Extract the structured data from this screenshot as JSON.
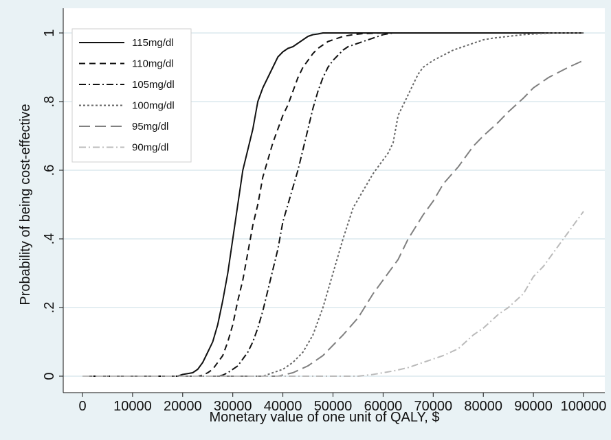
{
  "chart_data": {
    "type": "line",
    "title": "",
    "xlabel": "Monetary value of one unit of QALY, $",
    "ylabel": "Probability of being cost-effective",
    "xlim": [
      0,
      100000
    ],
    "ylim": [
      0,
      1
    ],
    "xticks": [
      0,
      10000,
      20000,
      30000,
      40000,
      50000,
      60000,
      70000,
      80000,
      90000,
      100000
    ],
    "xtick_labels": [
      "0",
      "10000",
      "20000",
      "30000",
      "40000",
      "50000",
      "60000",
      "70000",
      "80000",
      "90000",
      "100000"
    ],
    "yticks": [
      0,
      0.2,
      0.4,
      0.6,
      0.8,
      1
    ],
    "ytick_labels": [
      "0",
      ".2",
      ".4",
      ".6",
      ".8",
      "1"
    ],
    "grid": true,
    "legend_position": "top-left",
    "background_color": "#e9f2f5",
    "plot_background_color": "#ffffff",
    "grid_color": "#dce8ee",
    "series": [
      {
        "name": "115mg/dl",
        "color": "#111111",
        "dash": "solid",
        "x": [
          0,
          19000,
          20000,
          22000,
          23000,
          24000,
          25000,
          26000,
          27000,
          28000,
          29000,
          30000,
          31000,
          32000,
          33000,
          34000,
          35000,
          36000,
          37000,
          38000,
          39000,
          40000,
          41000,
          42000,
          43000,
          44000,
          45000,
          46000,
          47000,
          48000,
          50000,
          100000
        ],
        "y": [
          0,
          0,
          0.005,
          0.01,
          0.02,
          0.04,
          0.07,
          0.1,
          0.15,
          0.22,
          0.3,
          0.4,
          0.5,
          0.6,
          0.66,
          0.72,
          0.8,
          0.84,
          0.87,
          0.9,
          0.93,
          0.945,
          0.955,
          0.96,
          0.97,
          0.98,
          0.99,
          0.995,
          0.997,
          1.0,
          1.0,
          1.0
        ]
      },
      {
        "name": "110mg/dl",
        "color": "#111111",
        "dash": "dash",
        "x": [
          0,
          23000,
          24000,
          25000,
          26000,
          27000,
          28000,
          29000,
          30000,
          31000,
          32000,
          33000,
          34000,
          35000,
          36000,
          37000,
          38000,
          39000,
          40000,
          41000,
          42000,
          43000,
          44000,
          45000,
          46000,
          47000,
          48000,
          49000,
          50000,
          52000,
          54000,
          56000,
          60000,
          100000
        ],
        "y": [
          0,
          0,
          0.003,
          0.01,
          0.02,
          0.04,
          0.06,
          0.1,
          0.15,
          0.22,
          0.28,
          0.36,
          0.44,
          0.5,
          0.58,
          0.63,
          0.68,
          0.72,
          0.76,
          0.79,
          0.83,
          0.87,
          0.9,
          0.92,
          0.94,
          0.955,
          0.965,
          0.975,
          0.98,
          0.99,
          0.995,
          0.998,
          1.0,
          1.0
        ]
      },
      {
        "name": "105mg/dl",
        "color": "#111111",
        "dash": "dashdot",
        "x": [
          0,
          27000,
          28000,
          29000,
          30000,
          31000,
          32000,
          33000,
          34000,
          35000,
          36000,
          37000,
          38000,
          39000,
          40000,
          41000,
          42000,
          43000,
          44000,
          45000,
          46000,
          47000,
          48000,
          49000,
          50000,
          51000,
          52000,
          53000,
          54000,
          55000,
          56000,
          57000,
          58000,
          60000,
          62000,
          100000
        ],
        "y": [
          0,
          0,
          0.003,
          0.01,
          0.02,
          0.03,
          0.05,
          0.07,
          0.1,
          0.14,
          0.19,
          0.25,
          0.31,
          0.37,
          0.45,
          0.5,
          0.55,
          0.6,
          0.66,
          0.72,
          0.78,
          0.83,
          0.87,
          0.9,
          0.92,
          0.935,
          0.95,
          0.96,
          0.965,
          0.97,
          0.975,
          0.98,
          0.985,
          0.995,
          1.0,
          1.0
        ]
      },
      {
        "name": "100mg/dl",
        "color": "#666666",
        "dash": "dot",
        "x": [
          0,
          36000,
          38000,
          40000,
          42000,
          44000,
          46000,
          48000,
          50000,
          52000,
          54000,
          56000,
          58000,
          60000,
          61000,
          62000,
          63000,
          64000,
          65000,
          66000,
          67000,
          68000,
          70000,
          72000,
          74000,
          76000,
          78000,
          80000,
          82000,
          85000,
          88000,
          90000,
          94000,
          100000
        ],
        "y": [
          0,
          0,
          0.01,
          0.02,
          0.04,
          0.07,
          0.12,
          0.2,
          0.3,
          0.4,
          0.49,
          0.54,
          0.59,
          0.63,
          0.65,
          0.68,
          0.76,
          0.79,
          0.82,
          0.85,
          0.88,
          0.9,
          0.92,
          0.935,
          0.95,
          0.96,
          0.97,
          0.98,
          0.985,
          0.99,
          0.995,
          0.997,
          1.0,
          1.0
        ]
      },
      {
        "name": "95mg/dl",
        "color": "#808080",
        "dash": "longdash",
        "x": [
          0,
          39000,
          42000,
          45000,
          48000,
          50000,
          52000,
          55000,
          58000,
          60000,
          63000,
          65000,
          68000,
          70000,
          72000,
          75000,
          78000,
          80000,
          83000,
          85000,
          88000,
          90000,
          93000,
          95000,
          97000,
          100000
        ],
        "y": [
          0,
          0,
          0.01,
          0.03,
          0.06,
          0.09,
          0.12,
          0.17,
          0.24,
          0.28,
          0.34,
          0.4,
          0.47,
          0.51,
          0.56,
          0.61,
          0.67,
          0.7,
          0.74,
          0.77,
          0.81,
          0.84,
          0.87,
          0.885,
          0.9,
          0.92
        ]
      },
      {
        "name": "90mg/dl",
        "color": "#bbbbbb",
        "dash": "dashdot",
        "x": [
          0,
          55000,
          58000,
          60000,
          62000,
          65000,
          68000,
          70000,
          72000,
          75000,
          78000,
          80000,
          83000,
          85000,
          88000,
          90000,
          92000,
          95000,
          97000,
          100000
        ],
        "y": [
          0,
          0,
          0.005,
          0.01,
          0.015,
          0.025,
          0.04,
          0.05,
          0.06,
          0.08,
          0.12,
          0.14,
          0.18,
          0.2,
          0.24,
          0.29,
          0.32,
          0.38,
          0.42,
          0.48
        ]
      }
    ]
  }
}
